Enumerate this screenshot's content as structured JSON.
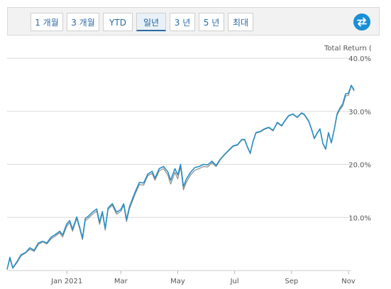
{
  "tabs": [
    {
      "label": "1 개월",
      "active": false
    },
    {
      "label": "3 개월",
      "active": false
    },
    {
      "label": "YTD",
      "active": false
    },
    {
      "label": "일년",
      "active": true
    },
    {
      "label": "3 년",
      "active": false
    },
    {
      "label": "5 년",
      "active": false
    },
    {
      "label": "최대",
      "active": false
    }
  ],
  "swap_button": {
    "icon": "swap-arrows-icon",
    "color": "#1a8fd6"
  },
  "chart_data": {
    "type": "line",
    "y_axis_title": "Total Return (",
    "ylim": [
      0,
      40
    ],
    "y_ticks": [
      "10.0%",
      "20.0%",
      "30.0%",
      "40.0%"
    ],
    "y_tick_values": [
      10,
      20,
      30,
      40
    ],
    "x_ticks": [
      "Jan 2021",
      "Mar",
      "May",
      "Jul",
      "Sep",
      "Nov"
    ],
    "x_tick_values": [
      2.2,
      4.1,
      6.1,
      8.1,
      10.1,
      12.1
    ],
    "xlim": [
      0.1,
      12.2
    ],
    "grid": true,
    "series": [
      {
        "color": "#8a8a8a",
        "points": [
          [
            0.1,
            0.2
          ],
          [
            0.2,
            2.2
          ],
          [
            0.3,
            0.4
          ],
          [
            0.45,
            1.5
          ],
          [
            0.6,
            2.8
          ],
          [
            0.75,
            3.3
          ],
          [
            0.9,
            4.0
          ],
          [
            1.05,
            3.6
          ],
          [
            1.2,
            4.9
          ],
          [
            1.35,
            5.4
          ],
          [
            1.5,
            5.0
          ],
          [
            1.65,
            6.0
          ],
          [
            1.8,
            6.5
          ],
          [
            1.95,
            7.1
          ],
          [
            2.05,
            6.3
          ],
          [
            2.2,
            8.4
          ],
          [
            2.3,
            9.0
          ],
          [
            2.4,
            7.4
          ],
          [
            2.55,
            9.8
          ],
          [
            2.65,
            7.9
          ],
          [
            2.75,
            5.8
          ],
          [
            2.85,
            9.4
          ],
          [
            2.95,
            9.8
          ],
          [
            3.1,
            10.6
          ],
          [
            3.25,
            11.2
          ],
          [
            3.35,
            8.7
          ],
          [
            3.45,
            10.8
          ],
          [
            3.55,
            7.6
          ],
          [
            3.65,
            11.5
          ],
          [
            3.8,
            12.3
          ],
          [
            3.95,
            10.6
          ],
          [
            4.1,
            11.2
          ],
          [
            4.2,
            12.3
          ],
          [
            4.3,
            9.2
          ],
          [
            4.4,
            11.6
          ],
          [
            4.5,
            13.0
          ],
          [
            4.6,
            14.4
          ],
          [
            4.75,
            16.2
          ],
          [
            4.9,
            16.1
          ],
          [
            5.05,
            17.9
          ],
          [
            5.2,
            18.3
          ],
          [
            5.3,
            17.0
          ],
          [
            5.45,
            18.8
          ],
          [
            5.6,
            19.2
          ],
          [
            5.75,
            18.0
          ],
          [
            5.85,
            16.3
          ],
          [
            6.0,
            18.5
          ],
          [
            6.1,
            17.3
          ],
          [
            6.2,
            19.5
          ],
          [
            6.3,
            15.2
          ],
          [
            6.4,
            16.6
          ],
          [
            6.55,
            18.0
          ],
          [
            6.7,
            18.9
          ],
          [
            6.85,
            19.2
          ],
          [
            7.0,
            19.6
          ],
          [
            7.15,
            19.5
          ],
          [
            7.3,
            20.3
          ],
          [
            7.45,
            19.6
          ],
          [
            7.6,
            20.9
          ],
          [
            7.75,
            21.8
          ],
          [
            7.9,
            22.6
          ],
          [
            8.05,
            23.4
          ],
          [
            8.2,
            23.6
          ],
          [
            8.35,
            24.6
          ],
          [
            8.45,
            24.6
          ],
          [
            8.55,
            23.2
          ],
          [
            8.65,
            22.0
          ],
          [
            8.75,
            24.3
          ],
          [
            8.85,
            25.9
          ],
          [
            9.0,
            26.1
          ],
          [
            9.15,
            26.6
          ],
          [
            9.3,
            26.9
          ],
          [
            9.45,
            26.3
          ],
          [
            9.6,
            27.8
          ],
          [
            9.75,
            27.2
          ],
          [
            9.85,
            28.0
          ],
          [
            10.0,
            29.1
          ],
          [
            10.15,
            29.4
          ],
          [
            10.3,
            28.8
          ],
          [
            10.45,
            29.6
          ],
          [
            10.55,
            29.3
          ],
          [
            10.7,
            28.1
          ],
          [
            10.8,
            26.6
          ],
          [
            10.9,
            24.8
          ],
          [
            11.0,
            25.8
          ],
          [
            11.1,
            26.6
          ],
          [
            11.2,
            23.9
          ],
          [
            11.3,
            22.8
          ],
          [
            11.4,
            25.9
          ],
          [
            11.5,
            24.0
          ],
          [
            11.6,
            26.5
          ],
          [
            11.7,
            29.3
          ],
          [
            11.8,
            30.3
          ],
          [
            11.9,
            31.0
          ],
          [
            12.0,
            32.9
          ],
          [
            12.1,
            33.0
          ],
          [
            12.2,
            34.8
          ],
          [
            12.3,
            33.8
          ]
        ]
      },
      {
        "color": "#2a8fc4",
        "points": [
          [
            0.1,
            0.2
          ],
          [
            0.2,
            2.5
          ],
          [
            0.3,
            0.5
          ],
          [
            0.45,
            1.7
          ],
          [
            0.6,
            3.0
          ],
          [
            0.75,
            3.4
          ],
          [
            0.9,
            4.3
          ],
          [
            1.05,
            3.8
          ],
          [
            1.2,
            5.2
          ],
          [
            1.35,
            5.5
          ],
          [
            1.5,
            5.2
          ],
          [
            1.65,
            6.3
          ],
          [
            1.8,
            6.8
          ],
          [
            1.95,
            7.4
          ],
          [
            2.05,
            6.7
          ],
          [
            2.2,
            8.8
          ],
          [
            2.3,
            9.4
          ],
          [
            2.4,
            7.8
          ],
          [
            2.55,
            10.1
          ],
          [
            2.65,
            8.2
          ],
          [
            2.75,
            6.1
          ],
          [
            2.85,
            9.8
          ],
          [
            2.95,
            10.2
          ],
          [
            3.1,
            11.0
          ],
          [
            3.25,
            11.6
          ],
          [
            3.35,
            9.1
          ],
          [
            3.45,
            11.1
          ],
          [
            3.55,
            7.9
          ],
          [
            3.65,
            11.8
          ],
          [
            3.8,
            12.6
          ],
          [
            3.95,
            11.0
          ],
          [
            4.1,
            11.5
          ],
          [
            4.2,
            12.6
          ],
          [
            4.3,
            9.6
          ],
          [
            4.4,
            12.0
          ],
          [
            4.5,
            13.4
          ],
          [
            4.6,
            14.8
          ],
          [
            4.75,
            16.6
          ],
          [
            4.9,
            16.5
          ],
          [
            5.05,
            18.2
          ],
          [
            5.2,
            18.7
          ],
          [
            5.3,
            17.4
          ],
          [
            5.45,
            19.2
          ],
          [
            5.6,
            19.6
          ],
          [
            5.75,
            18.6
          ],
          [
            5.85,
            17.0
          ],
          [
            6.0,
            19.2
          ],
          [
            6.1,
            18.0
          ],
          [
            6.2,
            20.0
          ],
          [
            6.3,
            15.8
          ],
          [
            6.4,
            17.2
          ],
          [
            6.55,
            18.5
          ],
          [
            6.7,
            19.4
          ],
          [
            6.85,
            19.6
          ],
          [
            7.0,
            20.0
          ],
          [
            7.15,
            19.9
          ],
          [
            7.3,
            20.6
          ],
          [
            7.45,
            19.8
          ],
          [
            7.6,
            21.0
          ],
          [
            7.75,
            21.9
          ],
          [
            7.9,
            22.7
          ],
          [
            8.05,
            23.5
          ],
          [
            8.2,
            23.7
          ],
          [
            8.35,
            24.7
          ],
          [
            8.45,
            24.7
          ],
          [
            8.55,
            23.3
          ],
          [
            8.65,
            22.1
          ],
          [
            8.75,
            24.4
          ],
          [
            8.85,
            26.0
          ],
          [
            9.0,
            26.2
          ],
          [
            9.15,
            26.7
          ],
          [
            9.3,
            27.0
          ],
          [
            9.45,
            26.4
          ],
          [
            9.6,
            27.9
          ],
          [
            9.75,
            27.3
          ],
          [
            9.85,
            28.1
          ],
          [
            10.0,
            29.2
          ],
          [
            10.15,
            29.5
          ],
          [
            10.3,
            28.9
          ],
          [
            10.45,
            29.7
          ],
          [
            10.55,
            29.4
          ],
          [
            10.7,
            28.2
          ],
          [
            10.8,
            26.7
          ],
          [
            10.9,
            24.9
          ],
          [
            11.0,
            25.9
          ],
          [
            11.1,
            26.7
          ],
          [
            11.2,
            24.0
          ],
          [
            11.3,
            22.9
          ],
          [
            11.4,
            26.0
          ],
          [
            11.5,
            24.1
          ],
          [
            11.6,
            26.6
          ],
          [
            11.7,
            29.5
          ],
          [
            11.8,
            30.6
          ],
          [
            11.9,
            31.4
          ],
          [
            12.0,
            33.3
          ],
          [
            12.1,
            33.4
          ],
          [
            12.2,
            34.9
          ],
          [
            12.3,
            34.0
          ]
        ]
      }
    ]
  }
}
